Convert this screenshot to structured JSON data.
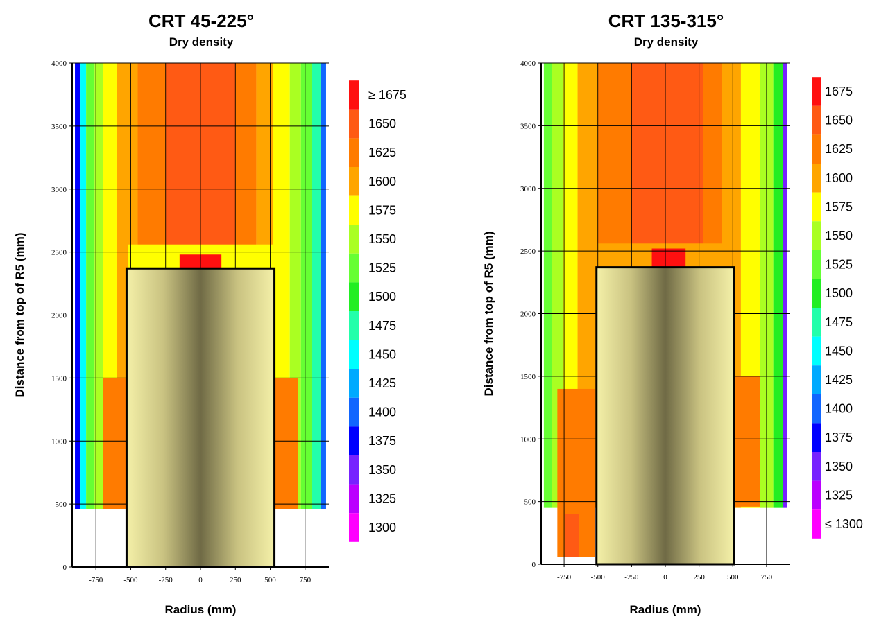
{
  "chart_data": [
    {
      "type": "heatmap",
      "title": "CRT 45-225°",
      "subtitle": "Dry density",
      "xlabel": "Radius (mm)",
      "ylabel": "Distance from top of R5 (mm)",
      "x_ticks": [
        "-750",
        "-500",
        "-250",
        "0",
        "250",
        "500",
        "750"
      ],
      "y_ticks": [
        "0",
        "500",
        "1000",
        "1500",
        "2000",
        "2500",
        "3000",
        "3500",
        "4000"
      ],
      "xlim": [
        -920,
        920
      ],
      "ylim": [
        0,
        4000
      ],
      "data_region": {
        "x": [
          -900,
          900
        ],
        "y": [
          460,
          4000
        ]
      },
      "canister": {
        "x": [
          -530,
          530
        ],
        "y": [
          0,
          2370
        ]
      },
      "bands": [
        {
          "x": [
            -900,
            -860
          ],
          "c": 1375
        },
        {
          "x": [
            -860,
            -820
          ],
          "c": 1450
        },
        {
          "x": [
            -820,
            -760
          ],
          "c": 1525
        },
        {
          "x": [
            -760,
            -700
          ],
          "c": 1550
        },
        {
          "x": [
            -700,
            -600
          ],
          "c": 1575
        },
        {
          "x": [
            -600,
            -450
          ],
          "c": 1600
        },
        {
          "x": [
            -450,
            -250
          ],
          "c": 1625
        },
        {
          "x": [
            -250,
            250
          ],
          "c": 1650
        },
        {
          "x": [
            250,
            400
          ],
          "c": 1625
        },
        {
          "x": [
            400,
            520
          ],
          "c": 1600
        },
        {
          "x": [
            520,
            640
          ],
          "c": 1575
        },
        {
          "x": [
            640,
            720
          ],
          "c": 1550
        },
        {
          "x": [
            720,
            800
          ],
          "c": 1525
        },
        {
          "x": [
            800,
            860
          ],
          "c": 1475
        },
        {
          "x": [
            860,
            900
          ],
          "c": 1400
        }
      ],
      "patches": [
        {
          "x": [
            -520,
            520
          ],
          "y": [
            2370,
            2560
          ],
          "c": 1575
        },
        {
          "x": [
            -700,
            -530
          ],
          "y": [
            460,
            1500
          ],
          "c": 1625
        },
        {
          "x": [
            530,
            700
          ],
          "y": [
            460,
            1500
          ],
          "c": 1625
        },
        {
          "x": [
            -150,
            150
          ],
          "y": [
            2370,
            2480
          ],
          "c": 1675
        }
      ],
      "legend": [
        "≥ 1675",
        "1650",
        "1625",
        "1600",
        "1575",
        "1550",
        "1525",
        "1500",
        "1475",
        "1450",
        "1425",
        "1400",
        "1375",
        "1350",
        "1325",
        "1300"
      ]
    },
    {
      "type": "heatmap",
      "title": "CRT 135-315°",
      "subtitle": "Dry density",
      "xlabel": "Radius (mm)",
      "ylabel": "Distance from top of R5 (mm)",
      "x_ticks": [
        "-750",
        "-500",
        "-250",
        "0",
        "250",
        "500",
        "750"
      ],
      "y_ticks": [
        "0",
        "500",
        "1000",
        "1500",
        "2000",
        "2500",
        "3000",
        "3500",
        "4000"
      ],
      "xlim": [
        -920,
        920
      ],
      "ylim": [
        0,
        4000
      ],
      "data_region": {
        "x": [
          -900,
          900
        ],
        "y": [
          450,
          4000
        ]
      },
      "canister": {
        "x": [
          -510,
          510
        ],
        "y": [
          0,
          2370
        ]
      },
      "bands": [
        {
          "x": [
            -900,
            -840
          ],
          "c": 1525
        },
        {
          "x": [
            -840,
            -760
          ],
          "c": 1550
        },
        {
          "x": [
            -760,
            -650
          ],
          "c": 1575
        },
        {
          "x": [
            -650,
            -500
          ],
          "c": 1600
        },
        {
          "x": [
            -500,
            -250
          ],
          "c": 1625
        },
        {
          "x": [
            -250,
            280
          ],
          "c": 1650
        },
        {
          "x": [
            280,
            420
          ],
          "c": 1625
        },
        {
          "x": [
            420,
            560
          ],
          "c": 1600
        },
        {
          "x": [
            560,
            700
          ],
          "c": 1575
        },
        {
          "x": [
            700,
            800
          ],
          "c": 1550
        },
        {
          "x": [
            800,
            870
          ],
          "c": 1500
        },
        {
          "x": [
            870,
            900
          ],
          "c": 1350
        }
      ],
      "patches": [
        {
          "x": [
            -500,
            500
          ],
          "y": [
            2370,
            2560
          ],
          "c": 1600
        },
        {
          "x": [
            -800,
            -520
          ],
          "y": [
            60,
            1400
          ],
          "c": 1625
        },
        {
          "x": [
            -740,
            -640
          ],
          "y": [
            60,
            400
          ],
          "c": 1650
        },
        {
          "x": [
            520,
            700
          ],
          "y": [
            460,
            1500
          ],
          "c": 1625
        },
        {
          "x": [
            -100,
            150
          ],
          "y": [
            2370,
            2520
          ],
          "c": 1675
        }
      ],
      "legend": [
        "1675",
        "1650",
        "1625",
        "1600",
        "1575",
        "1550",
        "1525",
        "1500",
        "1475",
        "1450",
        "1425",
        "1400",
        "1375",
        "1350",
        "1325",
        "≤ 1300"
      ]
    }
  ],
  "colors": {
    "1675": "#ff1010",
    "1650": "#ff5a14",
    "1625": "#ff7b00",
    "1600": "#ffa500",
    "1575": "#ffff00",
    "1550": "#aaff22",
    "1525": "#66ff33",
    "1500": "#22ee22",
    "1475": "#22ffaa",
    "1450": "#00ffff",
    "1425": "#00aaff",
    "1400": "#1166ff",
    "1375": "#0000ff",
    "1350": "#7722ff",
    "1325": "#bb00ff",
    "1300": "#ff00ff"
  }
}
